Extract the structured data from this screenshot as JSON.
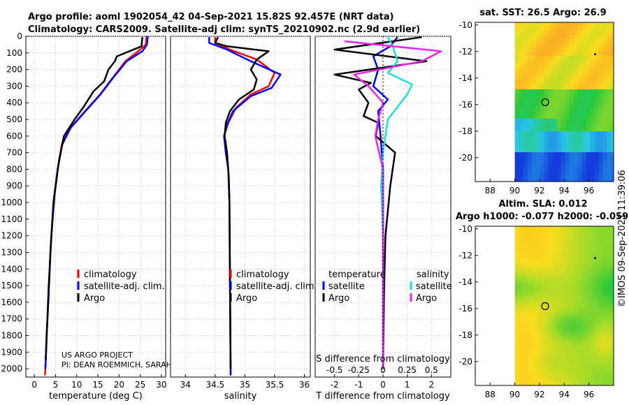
{
  "header": {
    "line1": "Argo profile: aoml 1902054_42 04-Sep-2021 15.82S 92.457E (NRT data)",
    "line2": "Climatology: CARS2009. Satellite-adj clim: synTS_20210902.nc (2.9d earlier)"
  },
  "credit": "©IMOS 09-Sep-2021 11:39:06",
  "project_note": {
    "line1": "US ARGO PROJECT",
    "line2": "PI: DEAN ROEMMICH, SARAH"
  },
  "colors": {
    "climatology": "#ff0000",
    "satellite": "#0000ff",
    "argo": "#000000",
    "sat_salinity": "#22dddd",
    "argo_salinity": "#ee22ee",
    "grid": "#c8c8c8"
  },
  "chart_data": [
    {
      "type": "line",
      "name": "temperature-profile",
      "xlabel": "temperature (deg C)",
      "xlim": [
        -2,
        31
      ],
      "ylim": [
        2050,
        0
      ],
      "xticks": [
        0,
        5,
        10,
        15,
        20,
        25,
        30
      ],
      "yticks": [
        0,
        100,
        200,
        300,
        400,
        500,
        600,
        700,
        800,
        900,
        1000,
        1100,
        1200,
        1300,
        1400,
        1500,
        1600,
        1700,
        1800,
        1900,
        2000
      ],
      "legend": [
        "climatology",
        "satellite-adj. clim.",
        "Argo"
      ],
      "series": [
        {
          "name": "climatology",
          "color": "#ff0000",
          "points": [
            [
              26.5,
              0
            ],
            [
              26.3,
              50
            ],
            [
              25.0,
              80
            ],
            [
              21.5,
              150
            ],
            [
              18.5,
              250
            ],
            [
              15.5,
              350
            ],
            [
              12.0,
              450
            ],
            [
              8.5,
              550
            ],
            [
              6.5,
              650
            ],
            [
              5.5,
              800
            ],
            [
              4.5,
              1000
            ],
            [
              3.8,
              1300
            ],
            [
              3.3,
              1600
            ],
            [
              2.9,
              1800
            ],
            [
              2.6,
              2000
            ],
            [
              2.5,
              2040
            ]
          ]
        },
        {
          "name": "satellite-adj. clim.",
          "color": "#0000ff",
          "points": [
            [
              26.8,
              0
            ],
            [
              26.6,
              50
            ],
            [
              25.5,
              90
            ],
            [
              21.8,
              150
            ],
            [
              18.6,
              250
            ],
            [
              15.6,
              350
            ],
            [
              12.1,
              450
            ],
            [
              8.6,
              550
            ],
            [
              6.6,
              650
            ],
            [
              5.5,
              800
            ],
            [
              4.5,
              1000
            ],
            [
              3.8,
              1300
            ],
            [
              3.3,
              1600
            ],
            [
              2.9,
              1800
            ],
            [
              2.6,
              2000
            ]
          ]
        },
        {
          "name": "Argo",
          "color": "#000000",
          "points": [
            [
              25.5,
              5
            ],
            [
              25.3,
              60
            ],
            [
              19.5,
              120
            ],
            [
              19.0,
              150
            ],
            [
              17.5,
              200
            ],
            [
              16.5,
              270
            ],
            [
              14.0,
              330
            ],
            [
              11.5,
              430
            ],
            [
              9.5,
              500
            ],
            [
              7.0,
              600
            ],
            [
              5.8,
              750
            ],
            [
              4.8,
              950
            ],
            [
              4.0,
              1200
            ],
            [
              3.4,
              1500
            ],
            [
              3.0,
              1750
            ],
            [
              2.7,
              1950
            ]
          ]
        }
      ]
    },
    {
      "type": "line",
      "name": "salinity-profile",
      "xlabel": "salinity",
      "xlim": [
        33.75,
        36.1
      ],
      "ylim": [
        2050,
        0
      ],
      "xticks": [
        34,
        34.5,
        35,
        35.5,
        36
      ],
      "legend": [
        "climatology",
        "satellite-adj. clim.",
        "Argo"
      ],
      "series": [
        {
          "name": "climatology",
          "color": "#ff0000",
          "points": [
            [
              34.5,
              5
            ],
            [
              34.5,
              40
            ],
            [
              34.75,
              80
            ],
            [
              35.2,
              140
            ],
            [
              35.5,
              220
            ],
            [
              35.4,
              300
            ],
            [
              35.1,
              350
            ],
            [
              34.85,
              430
            ],
            [
              34.72,
              520
            ],
            [
              34.65,
              600
            ],
            [
              34.68,
              700
            ],
            [
              34.72,
              800
            ],
            [
              34.74,
              1000
            ],
            [
              34.75,
              1500
            ],
            [
              34.76,
              2040
            ]
          ]
        },
        {
          "name": "satellite-adj. clim.",
          "color": "#0000ff",
          "points": [
            [
              34.4,
              5
            ],
            [
              34.4,
              40
            ],
            [
              34.7,
              80
            ],
            [
              35.1,
              150
            ],
            [
              35.6,
              230
            ],
            [
              35.45,
              310
            ],
            [
              35.1,
              360
            ],
            [
              34.8,
              450
            ],
            [
              34.7,
              530
            ],
            [
              34.65,
              600
            ],
            [
              34.68,
              700
            ],
            [
              34.72,
              800
            ],
            [
              34.74,
              1000
            ],
            [
              34.75,
              1500
            ],
            [
              34.76,
              2040
            ]
          ]
        },
        {
          "name": "Argo",
          "color": "#000000",
          "points": [
            [
              34.55,
              5
            ],
            [
              34.5,
              40
            ],
            [
              34.7,
              60
            ],
            [
              35.4,
              90
            ],
            [
              35.2,
              140
            ],
            [
              35.1,
              200
            ],
            [
              35.2,
              260
            ],
            [
              35.15,
              320
            ],
            [
              34.9,
              380
            ],
            [
              34.75,
              450
            ],
            [
              34.68,
              520
            ],
            [
              34.66,
              600
            ],
            [
              34.7,
              700
            ],
            [
              34.73,
              850
            ],
            [
              34.74,
              1000
            ],
            [
              34.75,
              1500
            ],
            [
              34.76,
              2000
            ]
          ]
        }
      ]
    },
    {
      "type": "line",
      "name": "difference-profile",
      "xlabel": "T difference from climatology",
      "top_axis_label": "S difference from climatology",
      "xlim": [
        -2.8,
        2.8
      ],
      "top_xlim": [
        -0.7,
        0.7
      ],
      "xticks": [
        -2,
        -1,
        0,
        1,
        2
      ],
      "top_ticks": [
        -0.5,
        -0.25,
        0,
        0.25,
        0.5
      ],
      "top_tick_labels": [
        "-0.5",
        "-0.25",
        "0",
        "0.25",
        "0.5"
      ],
      "legend_temperature": [
        "temperature",
        "satellite",
        "Argo"
      ],
      "legend_salinity": [
        "salinity",
        "satellite",
        "Argo"
      ],
      "series": [
        {
          "name": "T satellite",
          "color": "#0000ff",
          "points": [
            [
              0.6,
              5
            ],
            [
              0.3,
              60
            ],
            [
              -0.4,
              120
            ],
            [
              -0.2,
              200
            ],
            [
              -0.4,
              300
            ],
            [
              0.2,
              380
            ],
            [
              -0.2,
              450
            ],
            [
              -0.1,
              600
            ],
            [
              0,
              800
            ],
            [
              0,
              1000
            ],
            [
              0,
              1500
            ],
            [
              0,
              2000
            ]
          ]
        },
        {
          "name": "T Argo",
          "color": "#000000",
          "points": [
            [
              1.6,
              5
            ],
            [
              -2.0,
              80
            ],
            [
              1.8,
              150
            ],
            [
              -2.0,
              230
            ],
            [
              -0.5,
              280
            ],
            [
              -1.0,
              320
            ],
            [
              -0.6,
              400
            ],
            [
              -0.8,
              480
            ],
            [
              -0.2,
              520
            ],
            [
              -0.3,
              600
            ],
            [
              0.5,
              700
            ],
            [
              0.3,
              900
            ],
            [
              0.1,
              1200
            ],
            [
              0.05,
              1500
            ],
            [
              0,
              2000
            ]
          ]
        },
        {
          "name": "S satellite",
          "color": "#22dddd",
          "points": [
            [
              0.05,
              5
            ],
            [
              0.1,
              60
            ],
            [
              0.15,
              150
            ],
            [
              0.05,
              220
            ],
            [
              0.3,
              290
            ],
            [
              0.25,
              350
            ],
            [
              0.05,
              500
            ],
            [
              0,
              700
            ],
            [
              -0.02,
              900
            ],
            [
              0,
              1200
            ],
            [
              0,
              2000
            ]
          ]
        },
        {
          "name": "S Argo",
          "color": "#ee22ee",
          "points": [
            [
              -0.4,
              30
            ],
            [
              0.6,
              90
            ],
            [
              0.4,
              150
            ],
            [
              -0.3,
              230
            ],
            [
              -0.15,
              300
            ],
            [
              0,
              400
            ],
            [
              -0.05,
              500
            ],
            [
              -0.08,
              600
            ],
            [
              0,
              800
            ],
            [
              0,
              1200
            ],
            [
              0,
              2000
            ]
          ]
        }
      ]
    },
    {
      "type": "heatmap",
      "name": "sst-map",
      "title": "sat. SST: 26.5 Argo: 26.9",
      "xticks": [
        88,
        90,
        92,
        94,
        96
      ],
      "yticks": [
        -10,
        -12,
        -14,
        -16,
        -18,
        -20
      ],
      "lon_range": [
        86.8,
        98.0
      ],
      "lat_range": [
        -21.8,
        -9.8
      ],
      "data_lon_start": 90,
      "float_marker": [
        92.457,
        -15.82
      ],
      "track_marker": [
        96.5,
        -12.2
      ]
    },
    {
      "type": "heatmap",
      "name": "sla-map",
      "title": "Altim. SLA: 0.012",
      "subtitle": "Argo h1000: -0.077 h2000: -0.059",
      "xticks": [
        88,
        90,
        92,
        94,
        96
      ],
      "yticks": [
        -10,
        -12,
        -14,
        -16,
        -18,
        -20
      ],
      "lon_range": [
        86.8,
        98.0
      ],
      "lat_range": [
        -21.8,
        -9.8
      ],
      "data_lon_start": 90,
      "float_marker": [
        92.457,
        -15.82
      ],
      "track_marker": [
        96.5,
        -12.2
      ]
    }
  ]
}
